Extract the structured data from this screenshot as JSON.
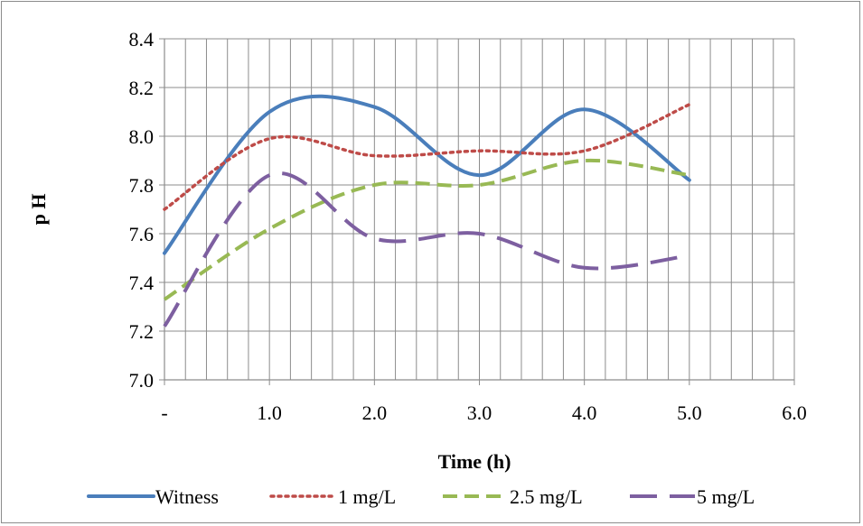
{
  "chart_data": {
    "type": "line",
    "title": "",
    "xlabel": "Time (h)",
    "ylabel": "p H",
    "xlim": [
      0,
      6
    ],
    "ylim": [
      7.0,
      8.4
    ],
    "x_minor_step": 0.2,
    "x_ticks": [
      {
        "value": 0,
        "label": "-"
      },
      {
        "value": 1,
        "label": "1.0"
      },
      {
        "value": 2,
        "label": "2.0"
      },
      {
        "value": 3,
        "label": "3.0"
      },
      {
        "value": 4,
        "label": "4.0"
      },
      {
        "value": 5,
        "label": "5.0"
      },
      {
        "value": 6,
        "label": "6.0"
      }
    ],
    "y_ticks": [
      {
        "value": 7.0,
        "label": "7.0"
      },
      {
        "value": 7.2,
        "label": "7.2"
      },
      {
        "value": 7.4,
        "label": "7.4"
      },
      {
        "value": 7.6,
        "label": "7.6"
      },
      {
        "value": 7.8,
        "label": "7.8"
      },
      {
        "value": 8.0,
        "label": "8.0"
      },
      {
        "value": 8.2,
        "label": "8.2"
      },
      {
        "value": 8.4,
        "label": "8.4"
      }
    ],
    "grid": true,
    "smooth": true,
    "legend_position": "bottom",
    "series": [
      {
        "name": "Witness",
        "color": "#4a7ebb",
        "dash": "solid",
        "points": [
          [
            0,
            7.52
          ],
          [
            1,
            8.1
          ],
          [
            2,
            8.12
          ],
          [
            3,
            7.84
          ],
          [
            4,
            8.11
          ],
          [
            5,
            7.82
          ]
        ]
      },
      {
        "name": "1 mg/L",
        "color": "#be4b48",
        "dash": "dot",
        "points": [
          [
            0,
            7.7
          ],
          [
            1,
            7.99
          ],
          [
            2,
            7.92
          ],
          [
            3,
            7.94
          ],
          [
            4,
            7.94
          ],
          [
            5,
            8.13
          ]
        ]
      },
      {
        "name": "2.5 mg/L",
        "color": "#98b954",
        "dash": "dash",
        "points": [
          [
            0,
            7.33
          ],
          [
            1,
            7.62
          ],
          [
            2,
            7.8
          ],
          [
            3,
            7.8
          ],
          [
            4,
            7.9
          ],
          [
            5,
            7.84
          ]
        ]
      },
      {
        "name": "5 mg/L",
        "color": "#7d5fa0",
        "dash": "longdash",
        "points": [
          [
            0,
            7.22
          ],
          [
            1,
            7.84
          ],
          [
            2,
            7.58
          ],
          [
            3,
            7.6
          ],
          [
            4,
            7.46
          ],
          [
            5,
            7.51
          ]
        ]
      }
    ]
  }
}
